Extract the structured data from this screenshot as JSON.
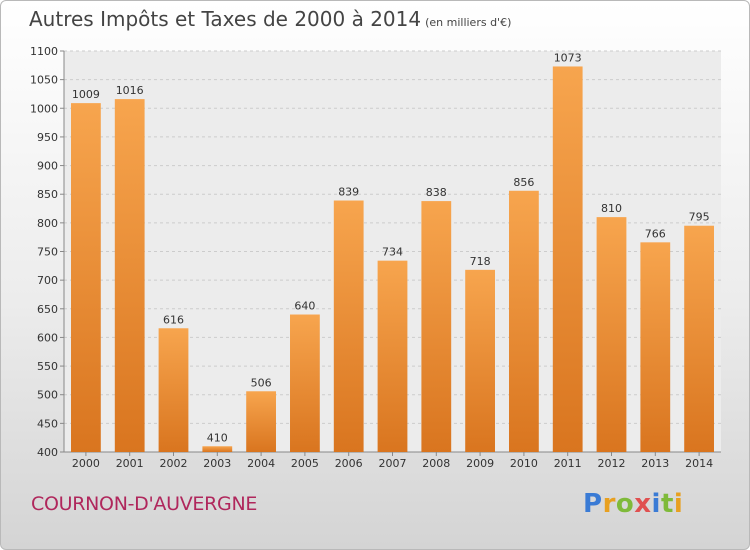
{
  "header": {
    "title": "Autres Impôts et Taxes de 2000 à 2014",
    "unit": "(en milliers d'€)"
  },
  "footer": {
    "city": "COURNON-D'AUVERGNE",
    "brand": "Proxiti",
    "brand_colors": [
      "#3a7bd5",
      "#e8a020",
      "#7fba3a",
      "#e05050",
      "#3a7bd5",
      "#7fba3a",
      "#e8a020"
    ]
  },
  "colors": {
    "bar_top": "#f7a54e",
    "bar_bottom": "#d9751f",
    "grid": "#cccccc",
    "plot_bg": "#ececec"
  },
  "chart_data": {
    "type": "bar",
    "title": "Autres Impôts et Taxes de 2000 à 2014",
    "subtitle": "(en milliers d'€)",
    "xlabel": "",
    "ylabel": "",
    "ylim": [
      400,
      1100
    ],
    "yticks": [
      400,
      450,
      500,
      550,
      600,
      650,
      700,
      750,
      800,
      850,
      900,
      950,
      1000,
      1050,
      1100
    ],
    "grid": true,
    "categories": [
      "2000",
      "2001",
      "2002",
      "2003",
      "2004",
      "2005",
      "2006",
      "2007",
      "2008",
      "2009",
      "2010",
      "2011",
      "2012",
      "2013",
      "2014"
    ],
    "values": [
      1009,
      1016,
      616,
      410,
      506,
      640,
      839,
      734,
      838,
      718,
      856,
      1073,
      810,
      766,
      795
    ]
  }
}
